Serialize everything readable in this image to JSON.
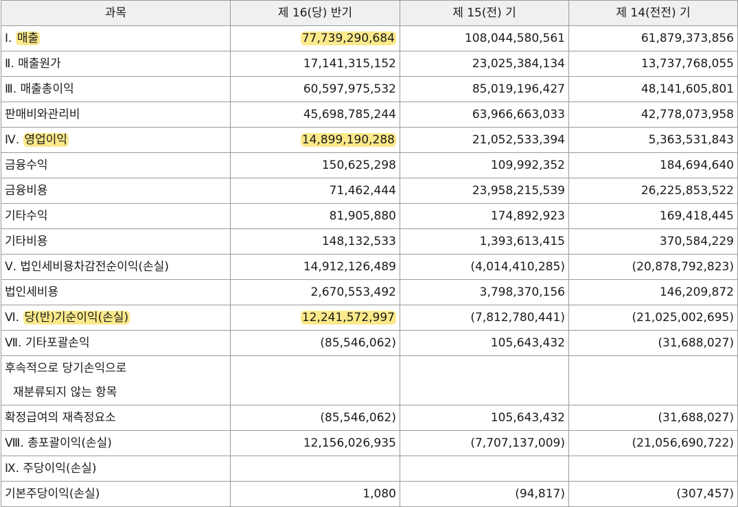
{
  "table": {
    "headers": [
      "과목",
      "제 16(당) 반기",
      "제 15(전) 기",
      "제 14(전전) 기"
    ],
    "rows": [
      {
        "prefix": "Ⅰ. ",
        "label": "매출",
        "highlight_label": true,
        "v1": "77,739,290,684",
        "highlight_v1": true,
        "v2": "108,044,580,561",
        "v3": "61,879,373,856"
      },
      {
        "prefix": "",
        "label": "Ⅱ. 매출원가",
        "v1": "17,141,315,152",
        "v2": "23,025,384,134",
        "v3": "13,737,768,055"
      },
      {
        "prefix": "",
        "label": "Ⅲ. 매출총이익",
        "v1": "60,597,975,532",
        "v2": "85,019,196,427",
        "v3": "48,141,605,801"
      },
      {
        "prefix": "",
        "label": "판매비와관리비",
        "v1": "45,698,785,244",
        "v2": "63,966,663,033",
        "v3": "42,778,073,958"
      },
      {
        "prefix": "Ⅳ. ",
        "label": "영업이익",
        "highlight_label": true,
        "v1": "14,899,190,288",
        "highlight_v1": true,
        "v2": "21,052,533,394",
        "v3": "5,363,531,843"
      },
      {
        "prefix": "",
        "label": "금융수익",
        "v1": "150,625,298",
        "v2": "109,992,352",
        "v3": "184,694,640"
      },
      {
        "prefix": "",
        "label": "금융비용",
        "v1": "71,462,444",
        "v2": "23,958,215,539",
        "v3": "26,225,853,522"
      },
      {
        "prefix": "",
        "label": "기타수익",
        "v1": "81,905,880",
        "v2": "174,892,923",
        "v3": "169,418,445"
      },
      {
        "prefix": "",
        "label": "기타비용",
        "v1": "148,132,533",
        "v2": "1,393,613,415",
        "v3": "370,584,229"
      },
      {
        "prefix": "",
        "label": "Ⅴ. 법인세비용차감전순이익(손실)",
        "v1": "14,912,126,489",
        "v2": "(4,014,410,285)",
        "v3": "(20,878,792,823)"
      },
      {
        "prefix": "",
        "label": "법인세비용",
        "v1": "2,670,553,492",
        "v2": "3,798,370,156",
        "v3": "146,209,872"
      },
      {
        "prefix": "Ⅵ. ",
        "label": "당(반)기순이익(손실)",
        "highlight_label": true,
        "v1": "12,241,572,997",
        "highlight_v1": true,
        "v2": "(7,812,780,441)",
        "v3": "(21,025,002,695)"
      },
      {
        "prefix": "",
        "label": "Ⅶ. 기타포괄손익",
        "v1": "(85,546,062)",
        "v2": "105,643,432",
        "v3": "(31,688,027)"
      },
      {
        "prefix": "",
        "label": "후속적으로 당기손익으로",
        "label2": "재분류되지 않는 항목",
        "tall": true,
        "v1": "",
        "v2": "",
        "v3": ""
      },
      {
        "prefix": "",
        "label": "확정급여의 재측정요소",
        "v1": "(85,546,062)",
        "v2": "105,643,432",
        "v3": "(31,688,027)"
      },
      {
        "prefix": "",
        "label": "Ⅷ. 총포괄이익(손실)",
        "v1": "12,156,026,935",
        "v2": "(7,707,137,009)",
        "v3": "(21,056,690,722)"
      },
      {
        "prefix": "",
        "label": "Ⅸ. 주당이익(손실)",
        "v1": "",
        "v2": "",
        "v3": ""
      },
      {
        "prefix": "",
        "label": "기본주당이익(손실)",
        "v1": "1,080",
        "v2": "(94,817)",
        "v3": "(307,457)"
      }
    ]
  },
  "colors": {
    "highlight": "#fbe98b",
    "header_bg": "#f0f0f0",
    "border": "#9a9a9a"
  }
}
